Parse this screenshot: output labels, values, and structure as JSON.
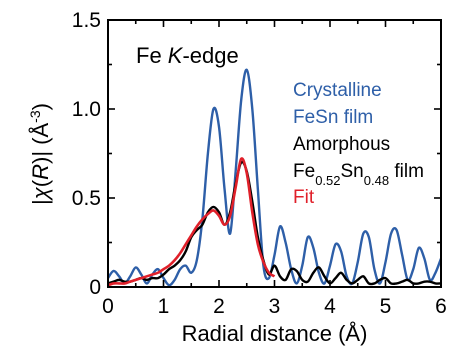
{
  "chart_data": {
    "type": "line",
    "annotation": "Fe K-edge",
    "annotation_parts": {
      "pre": "Fe ",
      "italic": "K",
      "post": "-edge"
    },
    "xlabel": "Radial distance (Å)",
    "ylabel": "|χ(R)| (Å⁻³)",
    "ylabel_parts": {
      "pre": "|",
      "chi": "χ",
      "paren_open": "(",
      "R": "R",
      "paren_close": ")| (Å",
      "exp": "-3",
      "end": ")"
    },
    "xlim": [
      0,
      6
    ],
    "ylim": [
      0,
      1.5
    ],
    "x_ticks": [
      "0",
      "0.5",
      "1",
      "1.5",
      "2",
      "2.5",
      "3",
      "3.5",
      "4",
      "4.5",
      "5",
      "5.5",
      "6"
    ],
    "x_ticks_labeled": [
      "0",
      "1",
      "2",
      "3",
      "4",
      "5",
      "6"
    ],
    "y_ticks": [
      "0",
      "0.5",
      "1.0",
      "1.5"
    ],
    "grid": false,
    "legend_placement": "right",
    "legend": [
      {
        "lines": [
          "Crystalline",
          "FeSn film"
        ],
        "color": "#2e5fa8"
      },
      {
        "lines": [
          "Amorphous"
        ],
        "sub_line": {
          "pre": "Fe",
          "sub1": "0.52",
          "mid": "Sn",
          "sub2": "0.48",
          "post": " film"
        },
        "color": "#000000"
      },
      {
        "lines": [
          "Fit"
        ],
        "color": "#e0202a"
      }
    ],
    "series": [
      {
        "name": "Crystalline FeSn film",
        "color": "#2e5fa8",
        "x": [
          0.0,
          0.1,
          0.2,
          0.3,
          0.4,
          0.5,
          0.6,
          0.7,
          0.8,
          0.9,
          1.0,
          1.1,
          1.2,
          1.3,
          1.4,
          1.5,
          1.6,
          1.7,
          1.8,
          1.9,
          2.0,
          2.1,
          2.2,
          2.3,
          2.4,
          2.5,
          2.6,
          2.7,
          2.8,
          2.9,
          3.0,
          3.1,
          3.2,
          3.3,
          3.4,
          3.5,
          3.6,
          3.7,
          3.8,
          3.9,
          4.0,
          4.1,
          4.2,
          4.3,
          4.4,
          4.5,
          4.6,
          4.7,
          4.8,
          4.9,
          5.0,
          5.1,
          5.2,
          5.3,
          5.4,
          5.5,
          5.6,
          5.7,
          5.8,
          5.9,
          6.0
        ],
        "y": [
          0.05,
          0.09,
          0.06,
          0.02,
          0.06,
          0.11,
          0.07,
          0.02,
          0.07,
          0.1,
          0.05,
          0.01,
          0.04,
          0.1,
          0.12,
          0.08,
          0.15,
          0.38,
          0.75,
          1.0,
          0.9,
          0.55,
          0.3,
          0.65,
          1.05,
          1.22,
          1.0,
          0.55,
          0.12,
          0.05,
          0.18,
          0.34,
          0.25,
          0.1,
          0.02,
          0.12,
          0.28,
          0.22,
          0.08,
          0.02,
          0.12,
          0.24,
          0.2,
          0.06,
          0.02,
          0.14,
          0.3,
          0.28,
          0.1,
          0.02,
          0.14,
          0.3,
          0.32,
          0.18,
          0.04,
          0.1,
          0.22,
          0.16,
          0.04,
          0.08,
          0.16
        ]
      },
      {
        "name": "Amorphous Fe0.52Sn0.48 film",
        "color": "#000000",
        "x": [
          0.0,
          0.1,
          0.2,
          0.3,
          0.4,
          0.5,
          0.6,
          0.7,
          0.8,
          0.9,
          1.0,
          1.1,
          1.2,
          1.3,
          1.4,
          1.5,
          1.6,
          1.7,
          1.8,
          1.9,
          2.0,
          2.1,
          2.2,
          2.3,
          2.4,
          2.5,
          2.6,
          2.7,
          2.8,
          2.9,
          3.0,
          3.1,
          3.2,
          3.3,
          3.4,
          3.5,
          3.6,
          3.7,
          3.8,
          3.9,
          4.0,
          4.1,
          4.2,
          4.3,
          4.4,
          4.5,
          4.6,
          4.7,
          4.8,
          4.9,
          5.0,
          5.1,
          5.2,
          5.3,
          5.4,
          5.5,
          5.6,
          5.7,
          5.8,
          5.9,
          6.0
        ],
        "y": [
          0.02,
          0.03,
          0.04,
          0.03,
          0.03,
          0.04,
          0.05,
          0.04,
          0.05,
          0.05,
          0.07,
          0.1,
          0.12,
          0.15,
          0.2,
          0.28,
          0.32,
          0.35,
          0.42,
          0.45,
          0.42,
          0.35,
          0.42,
          0.58,
          0.7,
          0.65,
          0.48,
          0.28,
          0.15,
          0.07,
          0.12,
          0.06,
          0.04,
          0.1,
          0.09,
          0.04,
          0.03,
          0.08,
          0.11,
          0.06,
          0.02,
          0.05,
          0.08,
          0.04,
          0.02,
          0.04,
          0.06,
          0.02,
          0.02,
          0.04,
          0.05,
          0.02,
          0.02,
          0.03,
          0.04,
          0.02,
          0.02,
          0.03,
          0.03,
          0.02,
          0.02
        ]
      },
      {
        "name": "Fit",
        "color": "#e0202a",
        "x": [
          0.0,
          0.1,
          0.2,
          0.3,
          0.4,
          0.5,
          0.6,
          0.7,
          0.8,
          0.9,
          1.0,
          1.1,
          1.2,
          1.3,
          1.4,
          1.5,
          1.6,
          1.7,
          1.8,
          1.9,
          2.0,
          2.1,
          2.2,
          2.3,
          2.4,
          2.5,
          2.6,
          2.7,
          2.8,
          2.9,
          3.0
        ],
        "y": [
          0.01,
          0.02,
          0.02,
          0.02,
          0.03,
          0.04,
          0.05,
          0.06,
          0.07,
          0.08,
          0.1,
          0.12,
          0.15,
          0.19,
          0.24,
          0.29,
          0.34,
          0.38,
          0.41,
          0.43,
          0.4,
          0.35,
          0.4,
          0.56,
          0.72,
          0.64,
          0.42,
          0.24,
          0.14,
          0.08,
          0.06
        ]
      }
    ]
  }
}
